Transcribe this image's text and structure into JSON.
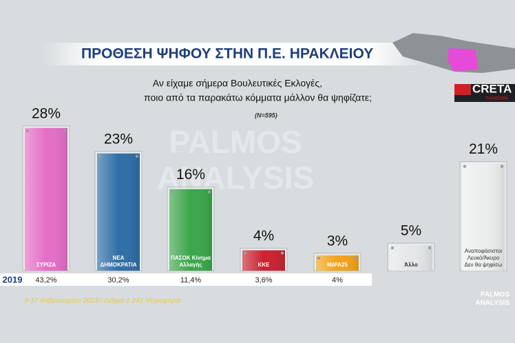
{
  "chart_data": {
    "type": "bar",
    "title": "ΠΡΟΘΕΣΗ ΨΗΦΟΥ ΣΤΗΝ Π.Ε. ΗΡΑΚΛΕΙΟΥ",
    "subtitle": [
      "Αν είχαμε σήμερα Βουλευτικές Εκλογές,",
      "ποιο από τα παρακάτω κόμματα μάλλον θα ψηφίζατε;"
    ],
    "sample_note": "(N=595)",
    "categories": [
      "ΣΥΡΙΖΑ",
      "ΝΕΑ ΔΗΜΟΚΡΑΤΙΑ",
      "ΠΑΣΟΚ Κίνημα Αλλαγής",
      "ΚΚΕ",
      "ΜέΡΑ25",
      "Άλλο",
      "Αναποφάσιστοι Λευκό/Άκυρο Δεν θα ψηφίσω"
    ],
    "values": [
      28,
      23,
      16,
      4,
      3,
      5,
      21
    ],
    "value_labels": [
      "28%",
      "23%",
      "16%",
      "4%",
      "3%",
      "5%",
      "21%"
    ],
    "colors": [
      "#e46ec6",
      "#2f6ea6",
      "#3ba64a",
      "#c92330",
      "#f2a31c",
      "#e4e7e9",
      "#eceeee"
    ],
    "ylim": [
      0,
      30
    ],
    "previous": {
      "label": "2019",
      "values": [
        43.2,
        30.2,
        11.4,
        3.6,
        4,
        null,
        null
      ],
      "value_labels": [
        "43,2%",
        "30,2%",
        "11,4%",
        "3,6%",
        "4%",
        null,
        null
      ]
    },
    "source": "9-17 Φεβρουαρίου 2023 / Δείγμα 1.241 Ψηφοφόροι",
    "watermark": [
      "PALMOS",
      "ANALYSIS"
    ],
    "brand": [
      "CRETA",
      "ΤΗΛΕΟΡΑ"
    ]
  }
}
